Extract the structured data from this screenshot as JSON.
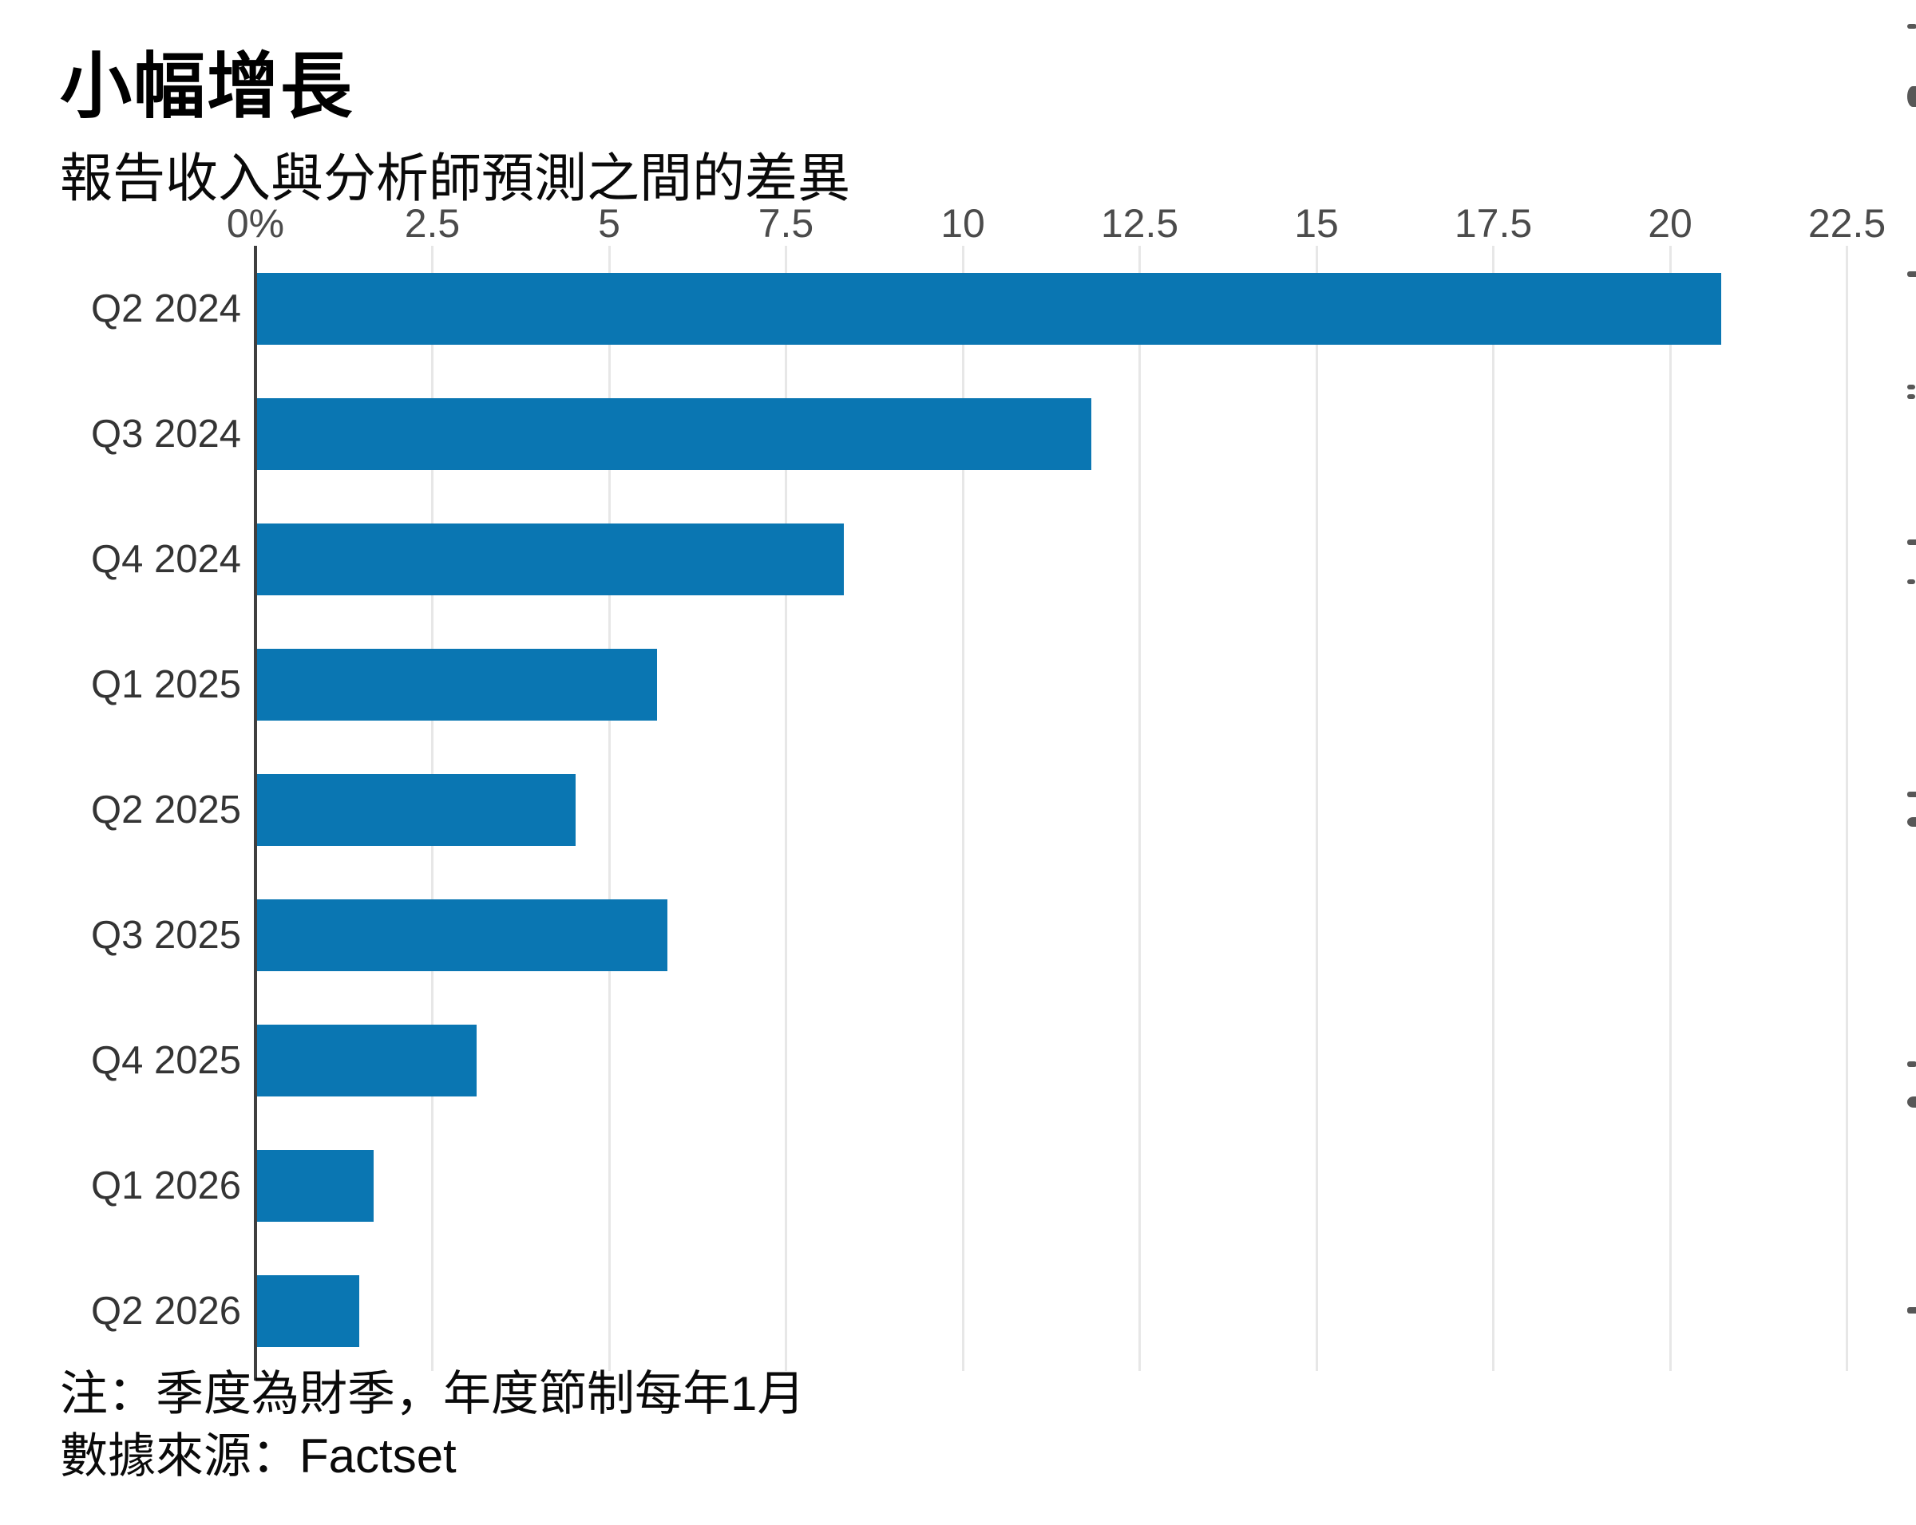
{
  "title": "小幅增長",
  "subtitle": "報告收入與分析師預測之間的差異",
  "footer": {
    "note": "注：季度為財季，年度節制每年1月",
    "source": "數據來源：Factset"
  },
  "chart_data": {
    "type": "bar",
    "orientation": "horizontal",
    "title": "小幅增長",
    "subtitle": "報告收入與分析師預測之間的差異",
    "categories": [
      "Q2 2024",
      "Q3 2024",
      "Q4 2024",
      "Q1 2025",
      "Q2 2025",
      "Q3 2025",
      "Q4 2025",
      "Q1 2026",
      "Q2 2026"
    ],
    "values": [
      20.7,
      11.8,
      8.3,
      5.65,
      4.5,
      5.8,
      3.1,
      1.65,
      1.45
    ],
    "value_unit": "%",
    "x_ticks": [
      {
        "label": "0%",
        "value": 0
      },
      {
        "label": "2.5",
        "value": 2.5
      },
      {
        "label": "5",
        "value": 5
      },
      {
        "label": "7.5",
        "value": 7.5
      },
      {
        "label": "10",
        "value": 10
      },
      {
        "label": "12.5",
        "value": 12.5
      },
      {
        "label": "15",
        "value": 15
      },
      {
        "label": "17.5",
        "value": 17.5
      },
      {
        "label": "20",
        "value": 20
      },
      {
        "label": "22.5",
        "value": 22.5
      }
    ],
    "xlim": [
      0,
      23.4
    ],
    "grid": "vertical-gridlines-on",
    "legend": "none",
    "tick_position": "top",
    "bar_color": "#0a76b2",
    "axis_color": "#3f3f3f",
    "grid_color": "#e7e7e7",
    "note": "注：季度為財季，年度節制每年1月",
    "source": "數據來源：Factset"
  },
  "edge_artifacts": {
    "marks": [
      {
        "y": 30,
        "w": 12,
        "h": 6,
        "round": false
      },
      {
        "y": 108,
        "w": 14,
        "h": 26,
        "round": true
      },
      {
        "y": 340,
        "w": 16,
        "h": 7,
        "round": false
      },
      {
        "y": 482,
        "w": 10,
        "h": 6,
        "round": false
      },
      {
        "y": 494,
        "w": 10,
        "h": 6,
        "round": false
      },
      {
        "y": 676,
        "w": 14,
        "h": 7,
        "round": false
      },
      {
        "y": 726,
        "w": 10,
        "h": 6,
        "round": false
      },
      {
        "y": 992,
        "w": 14,
        "h": 7,
        "round": false
      },
      {
        "y": 1024,
        "w": 14,
        "h": 12,
        "round": true
      },
      {
        "y": 1330,
        "w": 12,
        "h": 7,
        "round": false
      },
      {
        "y": 1374,
        "w": 16,
        "h": 14,
        "round": true
      },
      {
        "y": 1638,
        "w": 14,
        "h": 8,
        "round": false
      }
    ]
  }
}
